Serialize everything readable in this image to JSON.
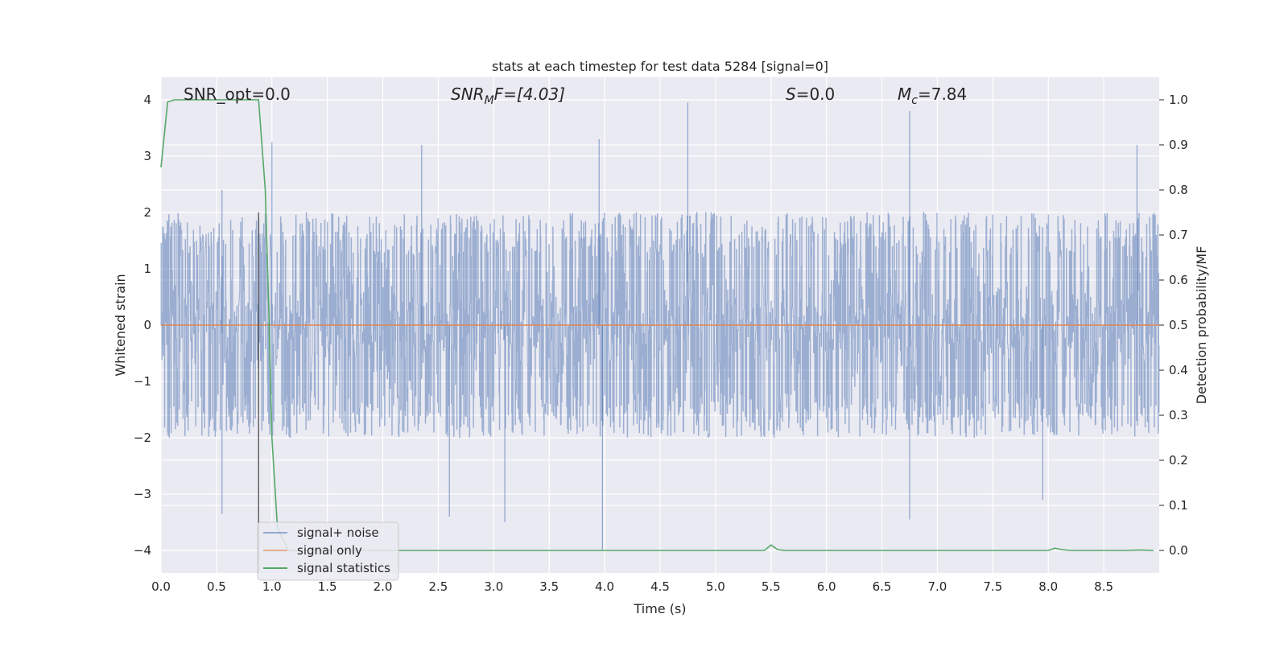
{
  "chart_data": {
    "type": "line",
    "title": "stats at each timestep for test data 5284 [signal=0]",
    "xlabel": "Time (s)",
    "ylabel_left": "Whitened strain",
    "ylabel_right": "Detection probability/MF",
    "xlim": [
      0.0,
      9.0
    ],
    "ylim_left": [
      -4.4,
      4.4
    ],
    "ylim_right": [
      -0.05,
      1.05
    ],
    "grid": true,
    "legend_position": "lower-left",
    "xticks": [
      "0.0",
      "0.5",
      "1.0",
      "1.5",
      "2.0",
      "2.5",
      "3.0",
      "3.5",
      "4.0",
      "4.5",
      "5.0",
      "5.5",
      "6.0",
      "6.5",
      "7.0",
      "7.5",
      "8.0",
      "8.5"
    ],
    "yticks_left": [
      "4",
      "3",
      "2",
      "1",
      "0",
      "−1",
      "−2",
      "−3",
      "−4"
    ],
    "yticks_right": [
      "1.0",
      "0.9",
      "0.8",
      "0.7",
      "0.6",
      "0.5",
      "0.4",
      "0.3",
      "0.2",
      "0.1",
      "0.0"
    ],
    "annotations": {
      "snr_opt": "SNR_opt=0.0",
      "snr_mf_sym": "SNR",
      "snr_mf_sub": "M",
      "snr_mf_rest": "F=[4.03]",
      "s_sym": "S",
      "s_rest": "=0.0",
      "mc_sym": "M",
      "mc_sub": "c",
      "mc_rest": "=7.84"
    },
    "series": [
      {
        "name": "signal+ noise",
        "color": "#4c72b0",
        "description_values": {
          "x_range": [
            0.0,
            9.0
          ],
          "typical_envelope": [
            -2.0,
            2.0
          ],
          "peaks": [
            {
              "x": 0.55,
              "y": 2.4
            },
            {
              "x": 1.0,
              "y": 3.25
            },
            {
              "x": 2.35,
              "y": 3.2
            },
            {
              "x": 3.95,
              "y": 3.3
            },
            {
              "x": 4.75,
              "y": 3.95
            },
            {
              "x": 6.75,
              "y": 3.8
            },
            {
              "x": 8.8,
              "y": 3.2
            }
          ],
          "troughs": [
            {
              "x": 0.55,
              "y": -3.35
            },
            {
              "x": 2.6,
              "y": -3.4
            },
            {
              "x": 3.1,
              "y": -3.5
            },
            {
              "x": 3.98,
              "y": -4.0
            },
            {
              "x": 6.75,
              "y": -3.45
            },
            {
              "x": 7.95,
              "y": -3.1
            }
          ]
        }
      },
      {
        "name": "signal only",
        "color": "#dd8452",
        "x": [
          0.0,
          9.0
        ],
        "y": [
          0.0,
          0.0
        ]
      },
      {
        "name": "signal statistics",
        "color": "#55a868",
        "axis": "right",
        "x": [
          0.0,
          0.06,
          0.12,
          0.2,
          0.3,
          0.5,
          0.7,
          0.8,
          0.88,
          0.94,
          0.97,
          1.0,
          1.05,
          1.15,
          1.5,
          2.0,
          3.0,
          4.0,
          5.0,
          5.44,
          5.5,
          5.56,
          5.62,
          6.0,
          7.0,
          8.0,
          8.06,
          8.12,
          8.2,
          8.7,
          8.82,
          8.95
        ],
        "y": [
          0.85,
          0.995,
          1.0,
          1.0,
          1.0,
          1.0,
          1.0,
          1.0,
          1.0,
          0.8,
          0.55,
          0.25,
          0.05,
          0.0,
          0.0,
          0.0,
          0.0,
          0.0,
          0.0,
          0.0,
          0.012,
          0.002,
          0.0,
          0.0,
          0.0,
          0.0,
          0.005,
          0.002,
          0.0,
          0.0,
          0.001,
          0.0
        ]
      }
    ],
    "vertical_marker_x": 0.88
  }
}
